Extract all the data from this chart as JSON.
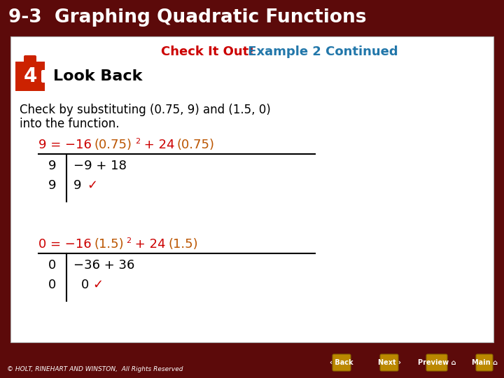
{
  "title": "9-3  Graphing Quadratic Functions",
  "title_color": "#FFFFFF",
  "title_bg": "#5C0A0A",
  "subtitle_check": "Check It Out!",
  "subtitle_check_color": "#CC0000",
  "subtitle_example": " Example 2 Continued",
  "subtitle_example_color": "#2277AA",
  "step_number": "4",
  "step_label": "Look Back",
  "step_bg": "#CC2200",
  "body_line1": "Check by substituting (0.75, 9) and (1.5, 0)",
  "body_line2": "into the function.",
  "red_color": "#CC0000",
  "orange_color": "#BB5500",
  "white_bg": "#FFFFFF",
  "card_bg": "#FFFFFF",
  "footer_bg": "#5C0A0A",
  "footer_text": "© HOLT, RINEHART AND WINSTON,  All Rights Reserved",
  "button_color": "#BB8800",
  "main_bg": "#5C0A0A",
  "eq1_row1_left": "9",
  "eq1_row1_right": "−9 + 18",
  "eq1_row2_left": "9",
  "eq1_row2_right": "9",
  "eq2_row1_left": "0",
  "eq2_row1_right": "−36 + 36",
  "eq2_row2_left": "0",
  "eq2_row2_right": "0"
}
